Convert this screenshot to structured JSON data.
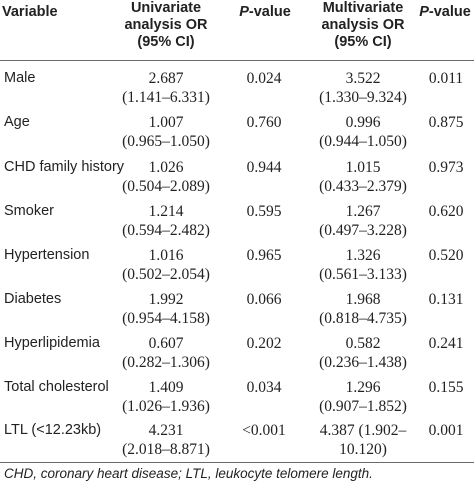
{
  "table": {
    "headers": {
      "variable": "Variable",
      "univariate_l1": "Univariate",
      "univariate_l2": "analysis OR",
      "univariate_l3": "(95% CI)",
      "p1_italic": "P",
      "p1_rest": "-value",
      "multivariate_l1": "Multivariate",
      "multivariate_l2": "analysis OR",
      "multivariate_l3": "(95% CI)",
      "p2_italic": "P",
      "p2_rest": "-value"
    },
    "rows": [
      {
        "label": "Male",
        "uni_or": "2.687",
        "uni_ci": "(1.141–6.331)",
        "p1": "0.024",
        "multi_or": "3.522",
        "multi_ci": "(1.330–9.324)",
        "p2": "0.011"
      },
      {
        "label": "Age",
        "uni_or": "1.007",
        "uni_ci": "(0.965–1.050)",
        "p1": "0.760",
        "multi_or": "0.996",
        "multi_ci": "(0.944–1.050)",
        "p2": "0.875"
      },
      {
        "label": "CHD family history",
        "uni_or": "1.026",
        "uni_ci": "(0.504–2.089)",
        "p1": "0.944",
        "multi_or": "1.015",
        "multi_ci": "(0.433–2.379)",
        "p2": "0.973"
      },
      {
        "label": "Smoker",
        "uni_or": "1.214",
        "uni_ci": "(0.594–2.482)",
        "p1": "0.595",
        "multi_or": "1.267",
        "multi_ci": "(0.497–3.228)",
        "p2": "0.620"
      },
      {
        "label": "Hypertension",
        "uni_or": "1.016",
        "uni_ci": "(0.502–2.054)",
        "p1": "0.965",
        "multi_or": "1.326",
        "multi_ci": "(0.561–3.133)",
        "p2": "0.520"
      },
      {
        "label": "Diabetes",
        "uni_or": "1.992",
        "uni_ci": "(0.954–4.158)",
        "p1": "0.066",
        "multi_or": "1.968",
        "multi_ci": "(0.818–4.735)",
        "p2": "0.131"
      },
      {
        "label": "Hyperlipidemia",
        "uni_or": "0.607",
        "uni_ci": "(0.282–1.306)",
        "p1": "0.202",
        "multi_or": "0.582",
        "multi_ci": "(0.236–1.438)",
        "p2": "0.241"
      },
      {
        "label": "Total cholesterol",
        "uni_or": "1.409",
        "uni_ci": "(1.026–1.936)",
        "p1": "0.034",
        "multi_or": "1.296",
        "multi_ci": "(0.907–1.852)",
        "p2": "0.155"
      },
      {
        "label": "LTL (<12.23kb)",
        "uni_or": "4.231",
        "uni_ci": "(2.018–8.871)",
        "p1": "<0.001",
        "multi_or": "4.387 (1.902–",
        "multi_ci": "10.120)",
        "p2": "0.001"
      }
    ],
    "footnote": "CHD, coronary heart disease; LTL, leukocyte telomere length."
  }
}
